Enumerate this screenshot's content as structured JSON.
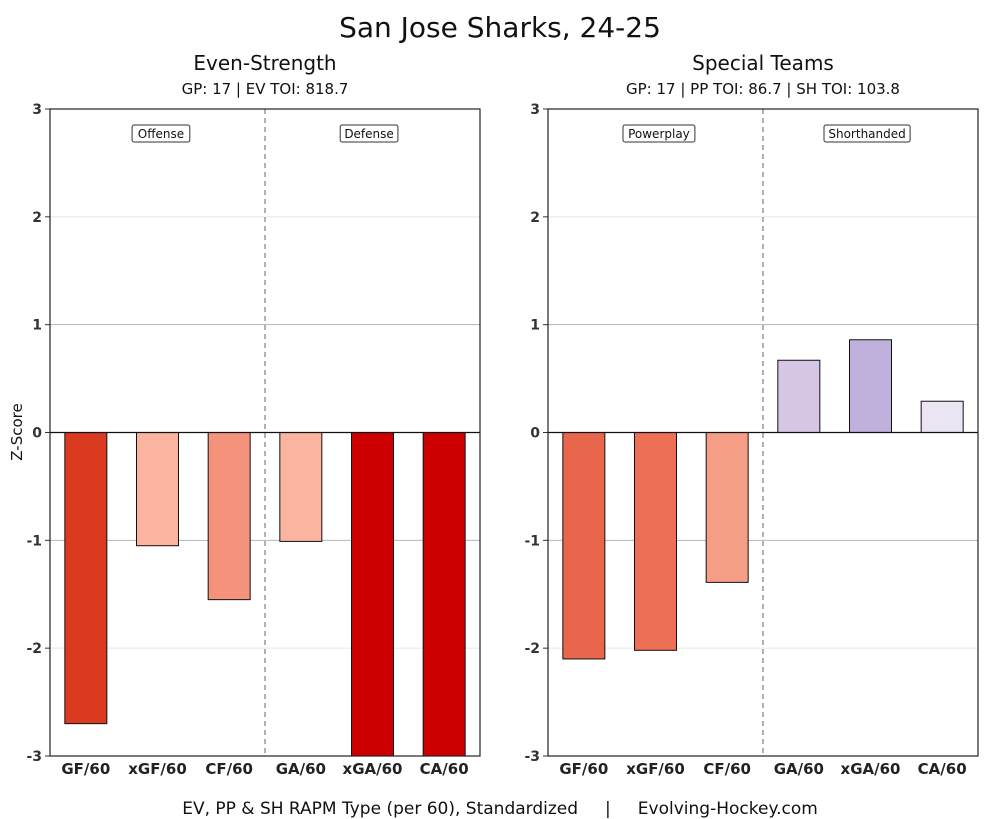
{
  "chart_data": {
    "type": "bar",
    "title": "San Jose Sharks, 24-25",
    "ylabel": "Z-Score",
    "footer": "EV, PP & SH RAPM Type (per 60), Standardized     |     Evolving-Hockey.com",
    "ylim": [
      -3,
      3
    ],
    "yticks": [
      3,
      2,
      1,
      0,
      -1,
      -2,
      -3
    ],
    "panels": [
      {
        "title": "Even-Strength",
        "subtitle": "GP: 17 | EV TOI: 818.7",
        "sections": [
          "Offense",
          "Defense"
        ],
        "categories": [
          "GF/60",
          "xGF/60",
          "CF/60",
          "GA/60",
          "xGA/60",
          "CA/60"
        ],
        "values": [
          -2.7,
          -1.05,
          -1.55,
          -1.01,
          -3.0,
          -3.0
        ],
        "colors": [
          "#d93a20",
          "#fbb4a0",
          "#f4927b",
          "#fbb4a0",
          "#cc0000",
          "#cc0000"
        ]
      },
      {
        "title": "Special Teams",
        "subtitle": "GP: 17 | PP TOI: 86.7 | SH TOI: 103.8",
        "sections": [
          "Powerplay",
          "Shorthanded"
        ],
        "categories": [
          "GF/60",
          "xGF/60",
          "CF/60",
          "GA/60",
          "xGA/60",
          "CA/60"
        ],
        "values": [
          -2.1,
          -2.02,
          -1.39,
          0.67,
          0.86,
          0.29
        ],
        "colors": [
          "#e8664c",
          "#ec6f56",
          "#f59d85",
          "#d6c7e6",
          "#c0b0dc",
          "#ebe5f3"
        ]
      }
    ]
  }
}
